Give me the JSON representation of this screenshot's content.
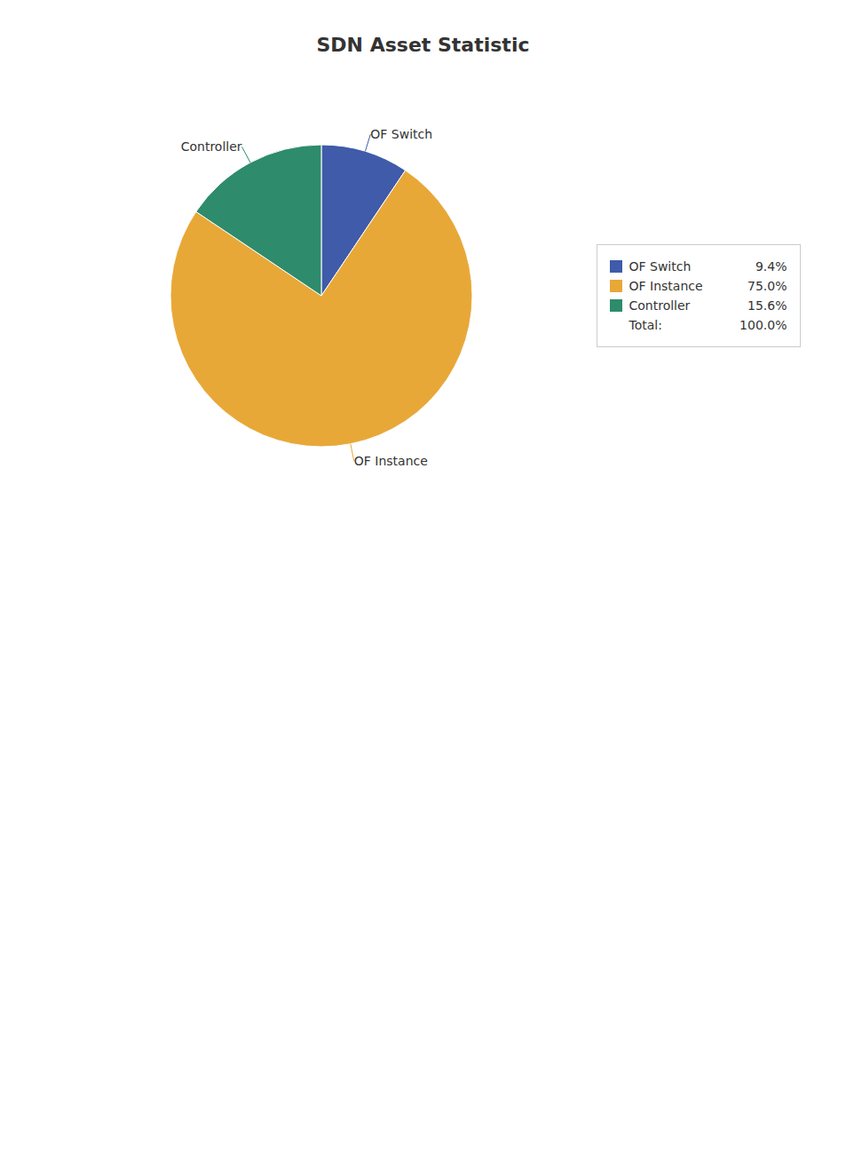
{
  "chart_data": {
    "type": "pie",
    "title": "SDN Asset Statistic",
    "categories": [
      "OF Switch",
      "OF Instance",
      "Controller"
    ],
    "values": [
      9.4,
      75.0,
      15.6
    ],
    "value_labels": [
      "9.4%",
      "75.0%",
      "15.6%"
    ],
    "colors": [
      "#3F5BA9",
      "#E8A838",
      "#2E8B6B"
    ],
    "legend": "right",
    "annotations": [
      "Total:",
      "100.0%"
    ]
  }
}
